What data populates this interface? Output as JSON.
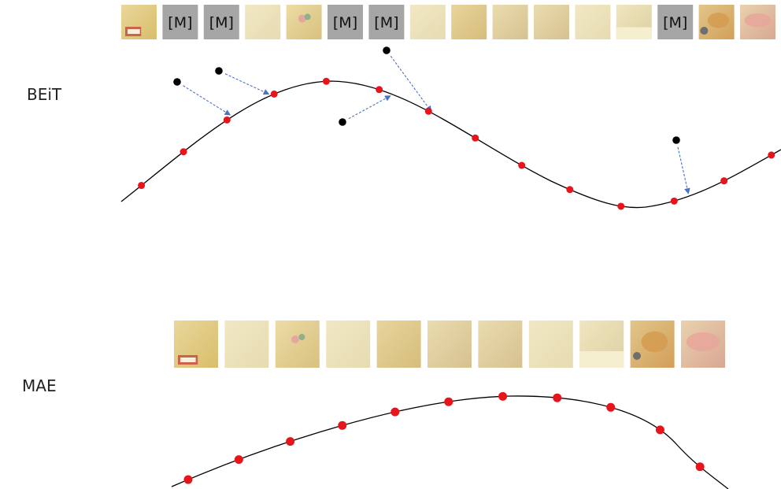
{
  "beit": {
    "label": "BEiT",
    "mask_token": "[M]",
    "patches": [
      {
        "masked": false,
        "tone": "yellow-ornament"
      },
      {
        "masked": true
      },
      {
        "masked": true
      },
      {
        "masked": false,
        "tone": "pale-plain"
      },
      {
        "masked": false,
        "tone": "yellow-floral"
      },
      {
        "masked": true
      },
      {
        "masked": true
      },
      {
        "masked": false,
        "tone": "pale-plain"
      },
      {
        "masked": false,
        "tone": "warm-plain"
      },
      {
        "masked": false,
        "tone": "textured-light"
      },
      {
        "masked": false,
        "tone": "textured-light"
      },
      {
        "masked": false,
        "tone": "pale-plain"
      },
      {
        "masked": false,
        "tone": "pale-shadow"
      },
      {
        "masked": true
      },
      {
        "masked": false,
        "tone": "orange-fur"
      },
      {
        "masked": false,
        "tone": "pink-hand"
      }
    ],
    "curve_points": 14,
    "predictions": 5
  },
  "mae": {
    "label": "MAE",
    "patches": [
      {
        "tone": "yellow-ornament"
      },
      {
        "tone": "pale-plain"
      },
      {
        "tone": "yellow-floral"
      },
      {
        "tone": "pale-plain"
      },
      {
        "tone": "warm-plain"
      },
      {
        "tone": "textured-light"
      },
      {
        "tone": "textured-light"
      },
      {
        "tone": "pale-plain"
      },
      {
        "tone": "pale-shadow"
      },
      {
        "tone": "orange-fur"
      },
      {
        "tone": "pink-hand"
      }
    ],
    "curve_points": 11
  },
  "colors": {
    "point": "#e8141b",
    "prediction": "#000000",
    "arrow": "#4a72c4",
    "curve": "#000000",
    "mask_bg": "#a6a6a6"
  }
}
